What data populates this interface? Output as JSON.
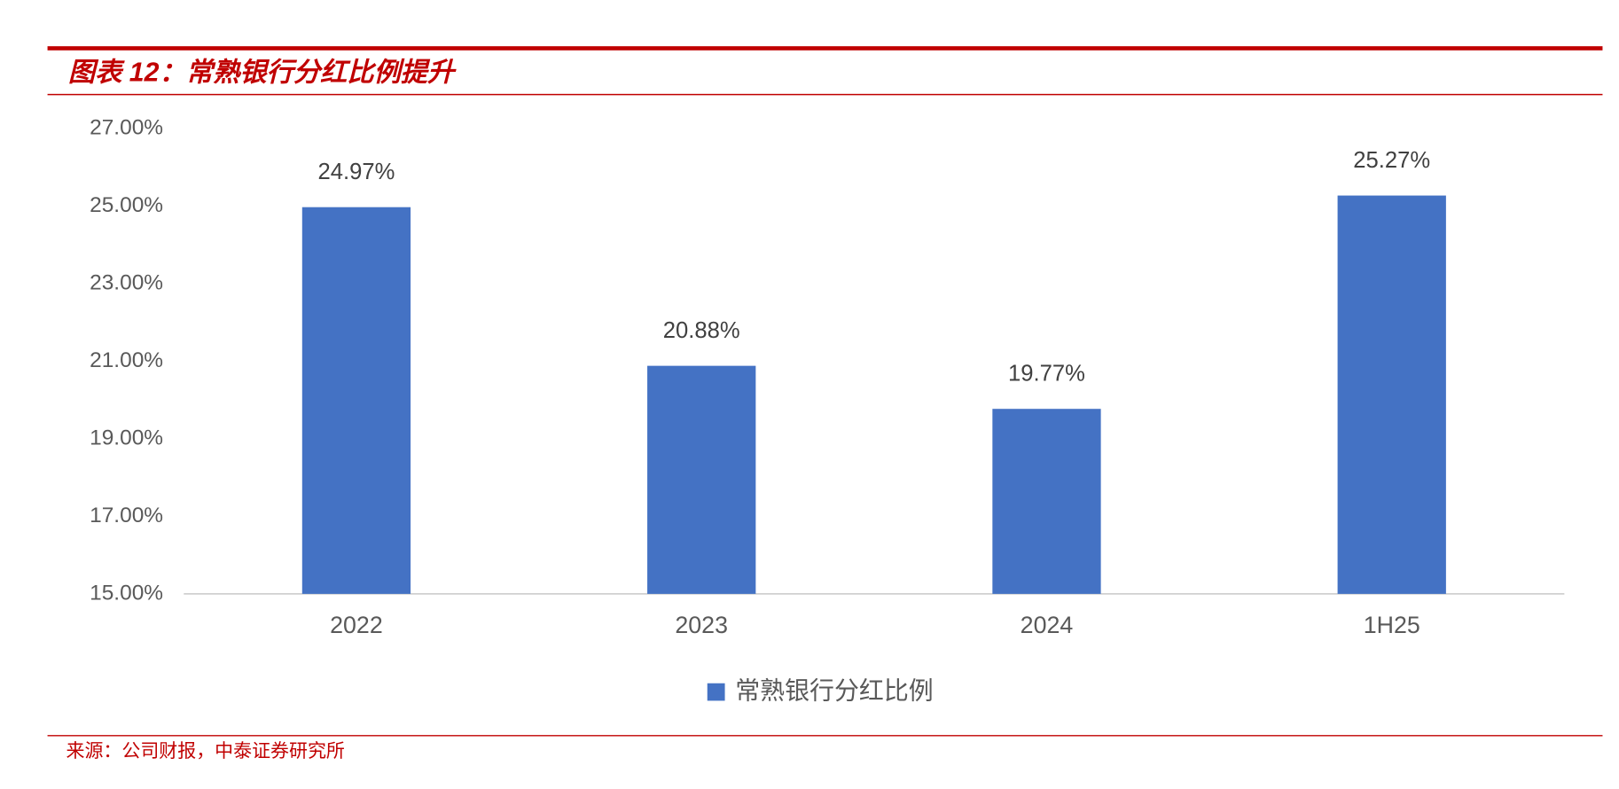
{
  "chart_data": {
    "type": "bar",
    "title": "图表 12：常熟银行分红比例提升",
    "source": "来源：公司财报，中泰证券研究所",
    "categories": [
      "2022",
      "2023",
      "2024",
      "1H25"
    ],
    "series": [
      {
        "name": "常熟银行分红比例",
        "color": "#4472c4",
        "values": [
          24.97,
          20.88,
          19.77,
          25.27
        ],
        "value_labels": [
          "24.97%",
          "20.88%",
          "19.77%",
          "25.27%"
        ]
      }
    ],
    "ylim": [
      15,
      27
    ],
    "yticks": [
      {
        "value": 15,
        "label": "15.00%"
      },
      {
        "value": 17,
        "label": "17.00%"
      },
      {
        "value": 19,
        "label": "19.00%"
      },
      {
        "value": 21,
        "label": "21.00%"
      },
      {
        "value": 23,
        "label": "23.00%"
      },
      {
        "value": 25,
        "label": "25.00%"
      },
      {
        "value": 27,
        "label": "27.00%"
      }
    ],
    "grid": false,
    "legend": "bottom"
  }
}
